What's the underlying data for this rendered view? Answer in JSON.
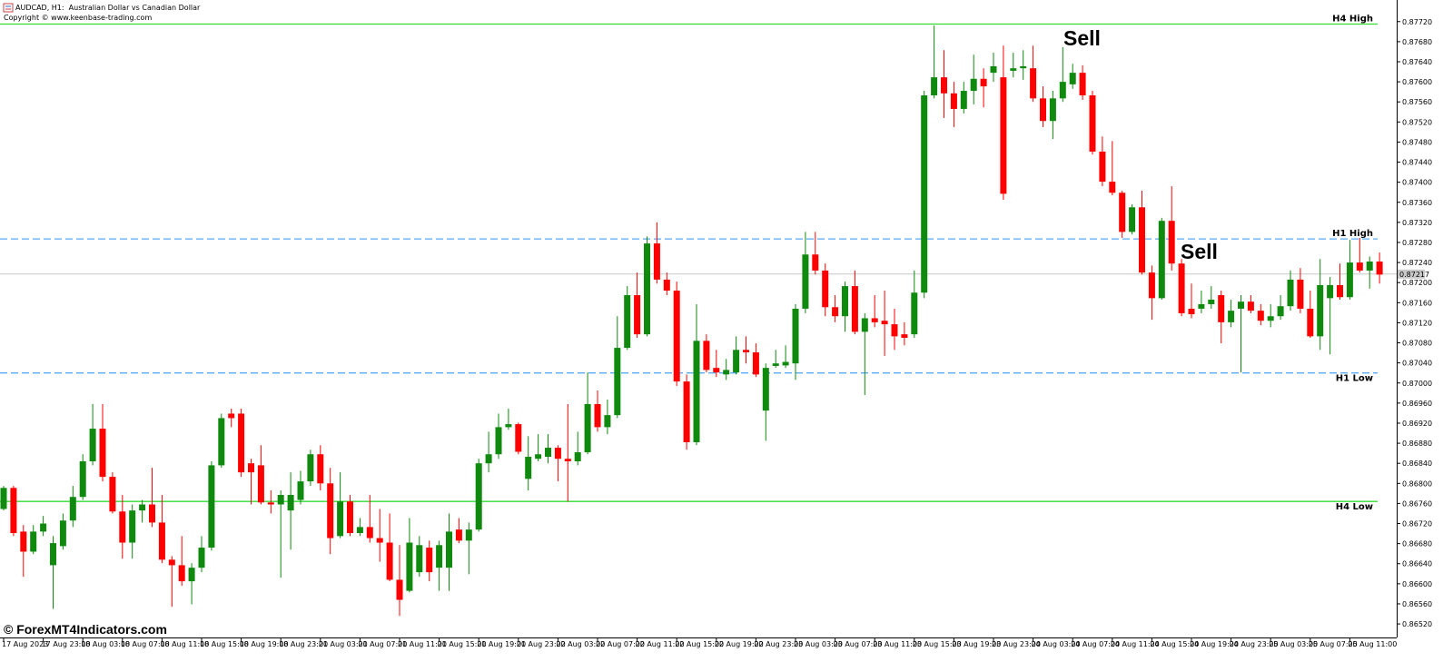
{
  "chart_data": {
    "type": "candlestick",
    "title": "AUDCAD, H1:  Australian Dollar vs Canadian Dollar",
    "subtitle": "Copyright © www.keenbase-trading.com",
    "watermark": "© ForexMT4Indicators.com",
    "annotations": [
      "Sell",
      "Sell"
    ],
    "up_color": "#0f8a0f",
    "down_color": "#ff0000",
    "categories": [
      "17 Aug 2023",
      null,
      null,
      null,
      "17 Aug 23:00",
      null,
      null,
      null,
      "18 Aug 03:00",
      null,
      null,
      null,
      "18 Aug 07:00",
      null,
      null,
      null,
      "18 Aug 11:00",
      null,
      null,
      null,
      "18 Aug 15:00",
      null,
      null,
      null,
      "18 Aug 19:00",
      null,
      null,
      null,
      "18 Aug 23:00",
      null,
      null,
      null,
      "21 Aug 03:00",
      null,
      null,
      null,
      "21 Aug 07:00",
      null,
      null,
      null,
      "21 Aug 11:00",
      null,
      null,
      null,
      "21 Aug 15:00",
      null,
      null,
      null,
      "21 Aug 19:00",
      null,
      null,
      null,
      "21 Aug 23:00",
      null,
      null,
      null,
      "22 Aug 03:00",
      null,
      null,
      null,
      "22 Aug 07:00",
      null,
      null,
      null,
      "22 Aug 11:00",
      null,
      null,
      null,
      "22 Aug 15:00",
      null,
      null,
      null,
      "22 Aug 19:00",
      null,
      null,
      null,
      "22 Aug 23:00",
      null,
      null,
      null,
      "23 Aug 03:00",
      null,
      null,
      null,
      "23 Aug 07:00",
      null,
      null,
      null,
      "23 Aug 11:00",
      null,
      null,
      null,
      "23 Aug 15:00",
      null,
      null,
      null,
      "23 Aug 19:00",
      null,
      null,
      null,
      "23 Aug 23:00",
      null,
      null,
      null,
      "24 Aug 03:00",
      null,
      null,
      null,
      "24 Aug 07:00",
      null,
      null,
      null,
      "24 Aug 11:00",
      null,
      null,
      null,
      "24 Aug 15:00",
      null,
      null,
      null,
      "24 Aug 19:00",
      null,
      null,
      null,
      "24 Aug 23:00",
      null,
      null,
      null,
      "25 Aug 03:00",
      null,
      null,
      null,
      "25 Aug 07:00",
      null,
      null,
      null,
      "25 Aug 11:00",
      null,
      null,
      null
    ],
    "open": [
      0.86749,
      0.86791,
      0.86704,
      0.86664,
      0.86704,
      0.86637,
      0.86675,
      0.86726,
      0.86773,
      0.86844,
      0.86909,
      0.86813,
      0.86744,
      0.86682,
      0.86746,
      0.86758,
      0.86722,
      0.86648,
      0.86637,
      0.86605,
      0.86632,
      0.86672,
      0.86836,
      0.86939,
      0.86939,
      0.8684,
      0.86836,
      0.86762,
      0.86758,
      0.86746,
      0.86767,
      0.86804,
      0.86858,
      0.868,
      0.86695,
      0.86764,
      0.86701,
      0.86713,
      0.86691,
      0.86682,
      0.86608,
      0.86586,
      0.86623,
      0.86672,
      0.86632,
      0.86632,
      0.86708,
      0.86686,
      0.86708,
      0.8684,
      0.86858,
      0.86912,
      0.86918,
      0.86809,
      0.86849,
      0.86853,
      0.86871,
      0.86849,
      0.86844,
      0.86862,
      0.86958,
      0.86912,
      0.86936,
      0.8707,
      0.87175,
      0.87097,
      0.87278,
      0.87206,
      0.87184,
      0.87003,
      0.86882,
      0.87084,
      0.8703,
      0.87017,
      0.87021,
      0.87066,
      0.87061,
      0.86945,
      0.87034,
      0.87035,
      0.87039,
      0.87148,
      0.87256,
      0.87224,
      0.87151,
      0.87133,
      0.87193,
      0.87102,
      0.87129,
      0.87124,
      0.87117,
      0.87097,
      0.87097,
      0.8718,
      0.87573,
      0.87609,
      0.87577,
      0.87546,
      0.87582,
      0.87606,
      0.87618,
      0.87609,
      0.87622,
      0.87627,
      0.87627,
      0.87567,
      0.87522,
      0.87567,
      0.87595,
      0.87618,
      0.87573,
      0.87461,
      0.87401,
      0.87379,
      0.87301,
      0.8735,
      0.8722,
      0.87169,
      0.87323,
      0.87238,
      0.87148,
      0.87148,
      0.87157,
      0.87175,
      0.87121,
      0.87148,
      0.87162,
      0.87144,
      0.87124,
      0.87133,
      0.87153,
      0.87206,
      0.87148,
      0.87093,
      0.87169,
      0.87195,
      0.87171,
      0.8724,
      0.87224,
      0.87242
    ],
    "high": [
      0.86795,
      0.86795,
      0.86717,
      0.86717,
      0.86735,
      0.86695,
      0.8674,
      0.86795,
      0.86858,
      0.86958,
      0.86958,
      0.86822,
      0.86777,
      0.86758,
      0.86767,
      0.86831,
      0.86777,
      0.86655,
      0.86695,
      0.86641,
      0.86695,
      0.86844,
      0.86939,
      0.86949,
      0.86949,
      0.86849,
      0.86876,
      0.86786,
      0.86786,
      0.86822,
      0.86825,
      0.86867,
      0.86876,
      0.86831,
      0.86822,
      0.86777,
      0.86731,
      0.86777,
      0.86749,
      0.8674,
      0.86677,
      0.86731,
      0.86695,
      0.86686,
      0.86686,
      0.8674,
      0.86731,
      0.86722,
      0.86849,
      0.86903,
      0.86939,
      0.86949,
      0.86921,
      0.86894,
      0.86898,
      0.86898,
      0.86876,
      0.86958,
      0.86903,
      0.87021,
      0.86985,
      0.86967,
      0.87133,
      0.87193,
      0.8722,
      0.87292,
      0.8732,
      0.8722,
      0.87202,
      0.87017,
      0.87157,
      0.87097,
      0.87066,
      0.87048,
      0.87093,
      0.87093,
      0.87079,
      0.87039,
      0.87066,
      0.87075,
      0.87157,
      0.87301,
      0.87301,
      0.87238,
      0.87175,
      0.87202,
      0.87224,
      0.87139,
      0.87175,
      0.87184,
      0.87148,
      0.87121,
      0.87224,
      0.87582,
      0.87712,
      0.87663,
      0.876,
      0.876,
      0.87654,
      0.87627,
      0.87658,
      0.87672,
      0.87658,
      0.87663,
      0.87672,
      0.87591,
      0.87582,
      0.87669,
      0.87636,
      0.87633,
      0.87582,
      0.87491,
      0.87482,
      0.87383,
      0.87356,
      0.87383,
      0.87234,
      0.87329,
      0.87392,
      0.87247,
      0.87198,
      0.87184,
      0.87193,
      0.87184,
      0.87166,
      0.87175,
      0.87175,
      0.87157,
      0.87157,
      0.87175,
      0.87224,
      0.87229,
      0.87184,
      0.87247,
      0.87211,
      0.87238,
      0.87285,
      0.87289,
      0.87252,
      0.8726
    ],
    "low": [
      0.86746,
      0.86695,
      0.86614,
      0.86659,
      0.86695,
      0.8655,
      0.86668,
      0.86713,
      0.86767,
      0.86836,
      0.86804,
      0.8674,
      0.8665,
      0.8665,
      0.86722,
      0.86713,
      0.86641,
      0.86554,
      0.86596,
      0.86559,
      0.86623,
      0.86666,
      0.86831,
      0.86912,
      0.86813,
      0.86758,
      0.86758,
      0.8674,
      0.86612,
      0.86668,
      0.86758,
      0.86795,
      0.86786,
      0.86659,
      0.86691,
      0.86695,
      0.86695,
      0.86682,
      0.86644,
      0.86605,
      0.86536,
      0.86583,
      0.86614,
      0.86605,
      0.86586,
      0.86586,
      0.86681,
      0.86619,
      0.86704,
      0.86822,
      0.86849,
      0.86907,
      0.86858,
      0.86786,
      0.86844,
      0.8684,
      0.86804,
      0.86764,
      0.86836,
      0.86858,
      0.86903,
      0.86898,
      0.8693,
      0.87066,
      0.8709,
      0.87093,
      0.87198,
      0.87175,
      0.86994,
      0.86867,
      0.86876,
      0.87021,
      0.87012,
      0.87006,
      0.87017,
      0.87039,
      0.87012,
      0.86885,
      0.8703,
      0.8703,
      0.87006,
      0.87139,
      0.87216,
      0.87133,
      0.87121,
      0.87102,
      0.87097,
      0.86976,
      0.87111,
      0.87054,
      0.87066,
      0.87075,
      0.8709,
      0.87169,
      0.87567,
      0.87528,
      0.8751,
      0.87537,
      0.87555,
      0.87549,
      0.876,
      0.87365,
      0.87609,
      0.87604,
      0.8756,
      0.8751,
      0.87486,
      0.8756,
      0.87586,
      0.87564,
      0.87455,
      0.87392,
      0.87374,
      0.87289,
      0.87296,
      0.87216,
      0.87126,
      0.87166,
      0.87224,
      0.87133,
      0.87129,
      0.87139,
      0.87148,
      0.87079,
      0.87111,
      0.87021,
      0.87139,
      0.87115,
      0.87111,
      0.87126,
      0.87144,
      0.87139,
      0.8709,
      0.87066,
      0.87057,
      0.87166,
      0.87166,
      0.8722,
      0.87188,
      0.87198
    ],
    "close": [
      0.86791,
      0.86701,
      0.86664,
      0.86704,
      0.8672,
      0.86681,
      0.86726,
      0.86773,
      0.86844,
      0.86909,
      0.86813,
      0.86744,
      0.86682,
      0.86746,
      0.86758,
      0.86722,
      0.86648,
      0.86637,
      0.86605,
      0.86632,
      0.86672,
      0.86836,
      0.8693,
      0.8693,
      0.86822,
      0.86822,
      0.86762,
      0.86758,
      0.86777,
      0.86777,
      0.86804,
      0.86858,
      0.868,
      0.86691,
      0.86764,
      0.86701,
      0.86713,
      0.86691,
      0.86682,
      0.86608,
      0.86568,
      0.86682,
      0.86677,
      0.86623,
      0.86677,
      0.86704,
      0.86686,
      0.86708,
      0.8684,
      0.86858,
      0.86912,
      0.86918,
      0.86863,
      0.86853,
      0.86858,
      0.86871,
      0.86849,
      0.86844,
      0.86862,
      0.86958,
      0.86912,
      0.86936,
      0.8707,
      0.87175,
      0.87097,
      0.87278,
      0.87206,
      0.87184,
      0.87003,
      0.86882,
      0.87084,
      0.87026,
      0.87021,
      0.87026,
      0.87066,
      0.87061,
      0.87017,
      0.8703,
      0.87039,
      0.87042,
      0.87148,
      0.87256,
      0.87224,
      0.87151,
      0.87133,
      0.87193,
      0.87102,
      0.87129,
      0.87121,
      0.87117,
      0.87093,
      0.8709,
      0.8718,
      0.87573,
      0.87609,
      0.87577,
      0.87546,
      0.87582,
      0.87606,
      0.87591,
      0.87631,
      0.87377,
      0.87627,
      0.87631,
      0.87567,
      0.87522,
      0.87567,
      0.876,
      0.87618,
      0.87573,
      0.87461,
      0.87401,
      0.87379,
      0.87301,
      0.8735,
      0.8722,
      0.87169,
      0.87323,
      0.87238,
      0.87139,
      0.87137,
      0.87157,
      0.87166,
      0.87121,
      0.87144,
      0.87162,
      0.87144,
      0.87124,
      0.87133,
      0.87153,
      0.87206,
      0.87148,
      0.87093,
      0.87195,
      0.87195,
      0.87171,
      0.8724,
      0.87224,
      0.87242,
      0.87216
    ],
    "levels": [
      {
        "name": "H4 High",
        "value": 0.87715,
        "color": "#33dd33",
        "style": "solid"
      },
      {
        "name": "H1 High",
        "value": 0.87287,
        "color": "#5aaaf5",
        "style": "dashed"
      },
      {
        "name": "H1 Low",
        "value": 0.8702,
        "color": "#5aaaf5",
        "style": "dashed"
      },
      {
        "name": "H4 Low",
        "value": 0.86764,
        "color": "#33dd33",
        "style": "solid"
      }
    ],
    "current_price": 0.87217,
    "ylim": [
      0.86493,
      0.87763
    ],
    "yticks": [
      {
        "value": 0.8772,
        "label": "0.87720"
      },
      {
        "value": 0.8768,
        "label": "0.87680"
      },
      {
        "value": 0.8764,
        "label": "0.87640"
      },
      {
        "value": 0.876,
        "label": "0.87600"
      },
      {
        "value": 0.8756,
        "label": "0.87560"
      },
      {
        "value": 0.8752,
        "label": "0.87520"
      },
      {
        "value": 0.8748,
        "label": "0.87480"
      },
      {
        "value": 0.8744,
        "label": "0.87440"
      },
      {
        "value": 0.874,
        "label": "0.87400"
      },
      {
        "value": 0.8736,
        "label": "0.87360"
      },
      {
        "value": 0.8732,
        "label": "0.87320"
      },
      {
        "value": 0.8728,
        "label": "0.87280"
      },
      {
        "value": 0.8724,
        "label": "0.87240"
      },
      {
        "value": 0.872,
        "label": "0.87200"
      },
      {
        "value": 0.8716,
        "label": "0.87160"
      },
      {
        "value": 0.8712,
        "label": "0.87120"
      },
      {
        "value": 0.8708,
        "label": "0.87080"
      },
      {
        "value": 0.8704,
        "label": "0.87040"
      },
      {
        "value": 0.87,
        "label": "0.87000"
      },
      {
        "value": 0.8696,
        "label": "0.86960"
      },
      {
        "value": 0.8692,
        "label": "0.86920"
      },
      {
        "value": 0.8688,
        "label": "0.86880"
      },
      {
        "value": 0.8684,
        "label": "0.86840"
      },
      {
        "value": 0.868,
        "label": "0.86800"
      },
      {
        "value": 0.8676,
        "label": "0.86760"
      },
      {
        "value": 0.8672,
        "label": "0.86720"
      },
      {
        "value": 0.8668,
        "label": "0.86680"
      },
      {
        "value": 0.8664,
        "label": "0.86640"
      },
      {
        "value": 0.866,
        "label": "0.86600"
      },
      {
        "value": 0.8656,
        "label": "0.86560"
      },
      {
        "value": 0.8652,
        "label": "0.86520"
      }
    ]
  }
}
